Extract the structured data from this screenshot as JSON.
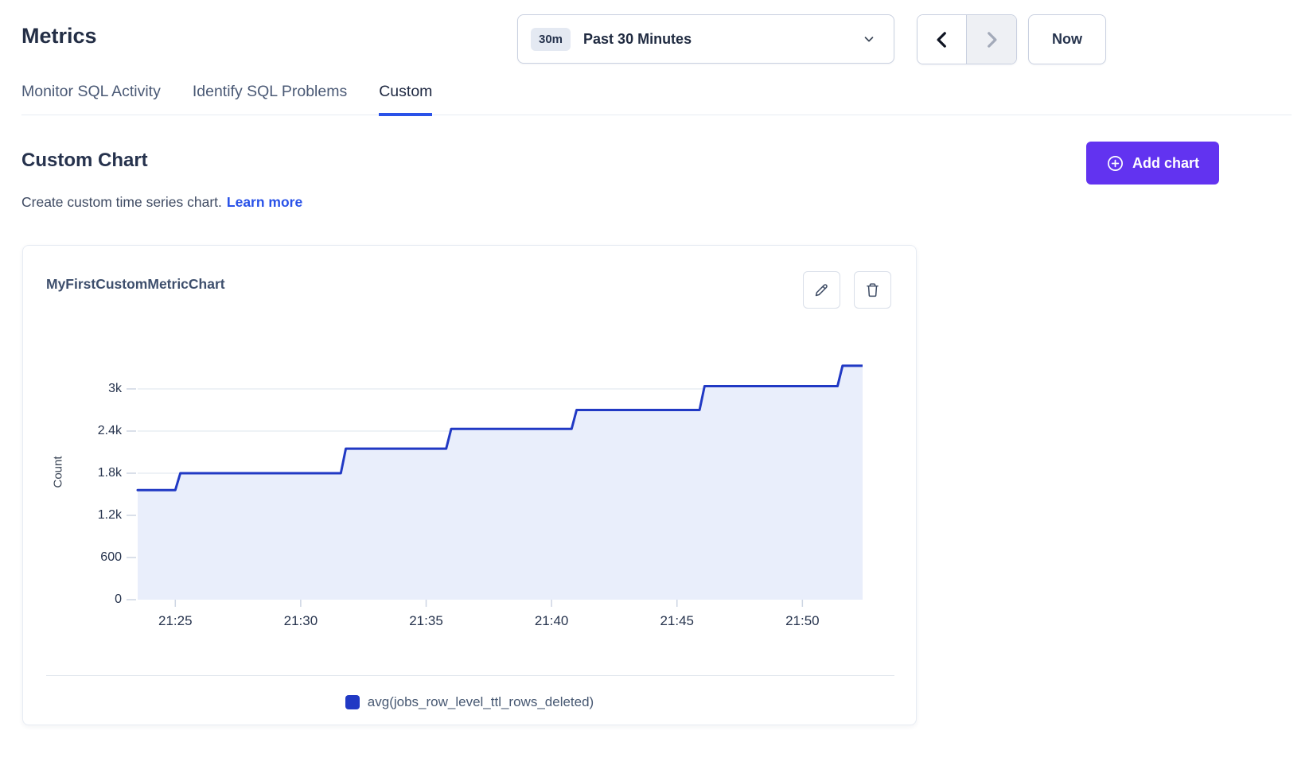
{
  "header": {
    "title": "Metrics"
  },
  "time_controls": {
    "range_badge": "30m",
    "range_label": "Past 30 Minutes",
    "now_label": "Now"
  },
  "tabs": [
    {
      "label": "Monitor SQL Activity",
      "active": false
    },
    {
      "label": "Identify SQL Problems",
      "active": false
    },
    {
      "label": "Custom",
      "active": true
    }
  ],
  "section": {
    "title": "Custom Chart",
    "subtitle": "Create custom time series chart.",
    "learn_more_label": "Learn more",
    "add_chart_label": "Add chart"
  },
  "card": {
    "title": "MyFirstCustomMetricChart"
  },
  "chart_data": {
    "type": "area-step",
    "title": "MyFirstCustomMetricChart",
    "ylabel": "Count",
    "yticks": [
      "0",
      "600",
      "1.2k",
      "1.8k",
      "2.4k",
      "3k"
    ],
    "ytick_values": [
      0,
      600,
      1200,
      1800,
      2400,
      3000
    ],
    "ylim": [
      0,
      3600
    ],
    "xticks": [
      "21:25",
      "21:30",
      "21:35",
      "21:40",
      "21:45",
      "21:50"
    ],
    "xtick_minutes": [
      25,
      30,
      35,
      40,
      45,
      50
    ],
    "xlim_minutes": [
      23.5,
      52.4
    ],
    "grid": true,
    "legend_position": "bottom-center",
    "fill_color": "#e9eefb",
    "series": [
      {
        "name": "avg(jobs_row_level_ttl_rows_deleted)",
        "color": "#2139c4",
        "points": [
          [
            23.5,
            1560
          ],
          [
            25.0,
            1560
          ],
          [
            25.2,
            1800
          ],
          [
            31.6,
            1800
          ],
          [
            31.8,
            2150
          ],
          [
            35.8,
            2150
          ],
          [
            36.0,
            2430
          ],
          [
            40.8,
            2430
          ],
          [
            41.0,
            2700
          ],
          [
            45.9,
            2700
          ],
          [
            46.1,
            3040
          ],
          [
            51.4,
            3040
          ],
          [
            51.6,
            3330
          ],
          [
            52.4,
            3330
          ]
        ]
      }
    ]
  },
  "colors": {
    "accent_purple": "#6233f0",
    "link_blue": "#2952e8",
    "tab_underline": "#2a52e8",
    "series_blue": "#2139c4",
    "area_fill": "#e9eefb",
    "gridline": "#e4e9f1"
  }
}
